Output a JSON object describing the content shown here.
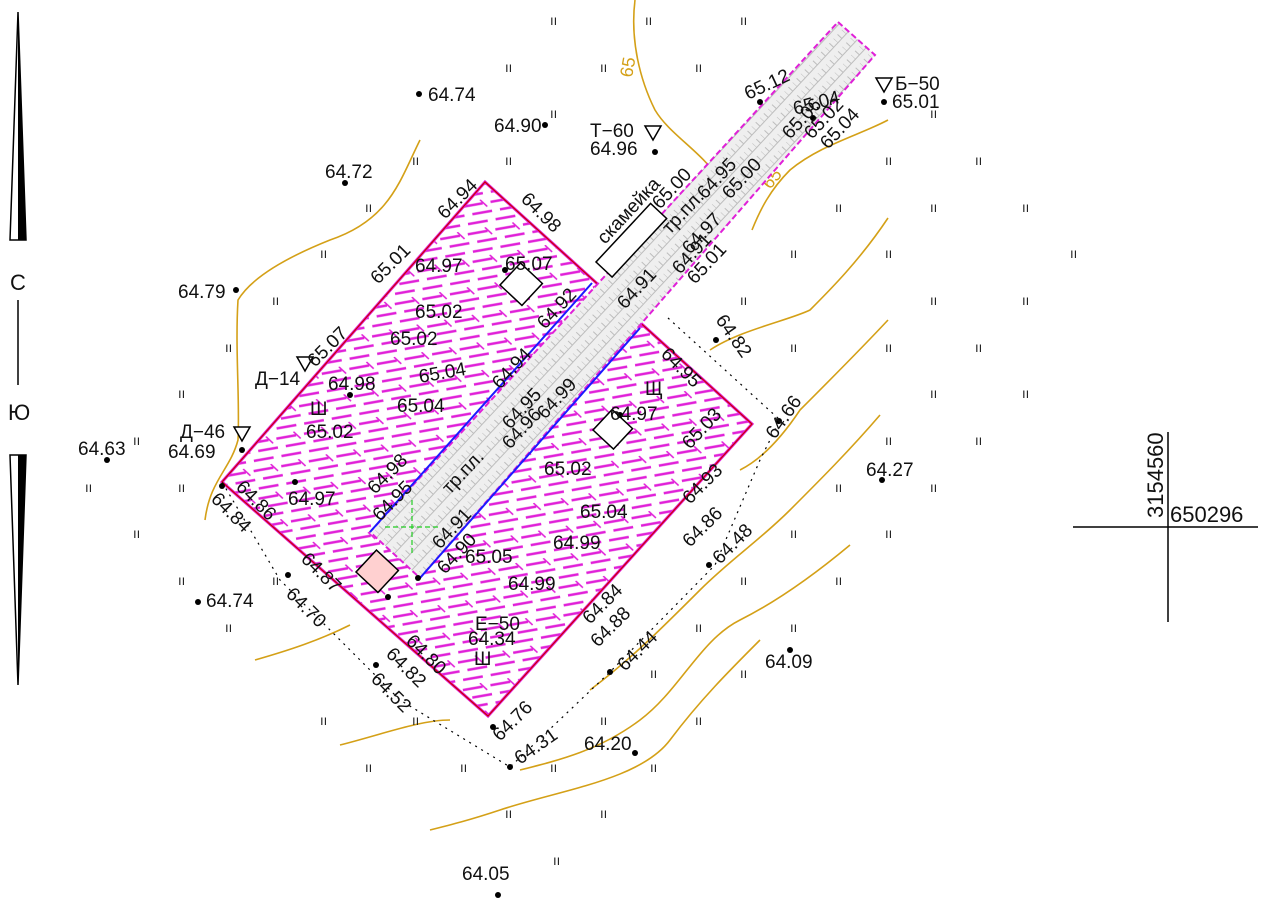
{
  "compass": {
    "north": "С",
    "south": "Ю"
  },
  "grid": {
    "x_label": "3154560",
    "y_label": "650296"
  },
  "contour_labels": [
    "65",
    "65"
  ],
  "colors": {
    "contour": "#d4a017",
    "building": "#e020d8",
    "path": "#1a1aff",
    "boundary": "#cc0000",
    "axis": "#22cc22"
  },
  "elevations": [
    "64.74",
    "64.90",
    "64.72",
    "64.79",
    "64.63",
    "64.69",
    "64.74",
    "64.05",
    "64.20",
    "64.09",
    "64.27",
    "64.66",
    "64.82",
    "65.12",
    "65.06",
    "65.04",
    "65.02",
    "65.04",
    "65.01",
    "64.96",
    "64.94",
    "64.98",
    "65.01",
    "65.07",
    "64.97",
    "65.07",
    "65.02",
    "65.02",
    "64.98",
    "65.04",
    "65.04",
    "65.02",
    "64.98",
    "64.97",
    "64.95",
    "64.91",
    "64.90",
    "65.05",
    "64.99",
    "64.99",
    "65.03",
    "65.04",
    "64.97",
    "65.02",
    "64.93",
    "64.86",
    "64.48",
    "64.88",
    "64.44",
    "64.84",
    "64.34",
    "64.76",
    "64.31",
    "64.52",
    "64.82",
    "64.80",
    "64.70",
    "64.87",
    "64.84",
    "64.86",
    "65.00",
    "64.95",
    "64.91",
    "64.92",
    "64.94",
    "64.95",
    "64.99",
    "64.91",
    "65.00",
    "64.97",
    "64.95",
    "65.01",
    "64.96"
  ],
  "markers": [
    "Т−60",
    "Б−50",
    "Д−14",
    "Д−46",
    "Е−50",
    "Ш",
    "Щ",
    "Ш"
  ],
  "annotations": [
    "скамейка",
    "тр.пл.",
    "тр.пл."
  ]
}
